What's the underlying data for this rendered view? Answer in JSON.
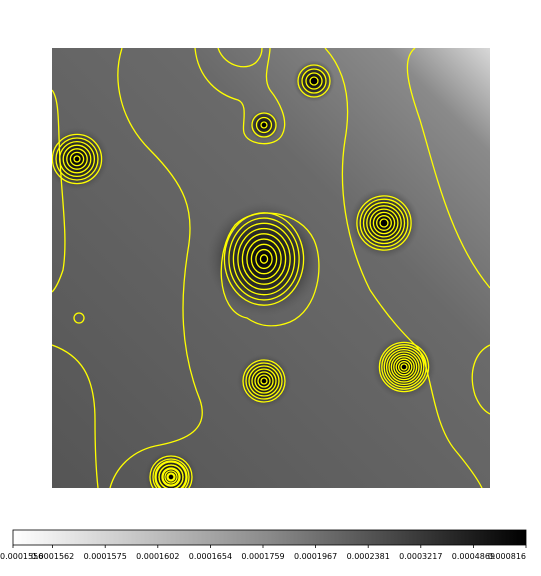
{
  "chart_data": {
    "type": "heatmap",
    "title": "",
    "xlabel": "",
    "ylabel": "",
    "colormap": "gray_r",
    "contour_color": "#ffff00",
    "grid": false,
    "colorbar": {
      "orientation": "horizontal",
      "placement": "bottom",
      "ticks": [
        "0.0001556",
        "0.0001562",
        "0.0001575",
        "0.0001602",
        "0.0001654",
        "0.0001759",
        "0.0001967",
        "0.0002381",
        "0.0003217",
        "0.0004869",
        "0.000816"
      ]
    },
    "sources": [
      {
        "id": "s1",
        "rings": 7
      },
      {
        "id": "s2",
        "rings": 4
      },
      {
        "id": "s3",
        "rings": 3
      },
      {
        "id": "s4",
        "rings": 9
      },
      {
        "id": "s5",
        "rings": 8
      },
      {
        "id": "s6",
        "rings": 10
      },
      {
        "id": "s7",
        "rings": 1
      },
      {
        "id": "s8",
        "rings": 7
      },
      {
        "id": "s9",
        "rings": 4
      },
      {
        "id": "s10",
        "rings": 7
      }
    ]
  }
}
